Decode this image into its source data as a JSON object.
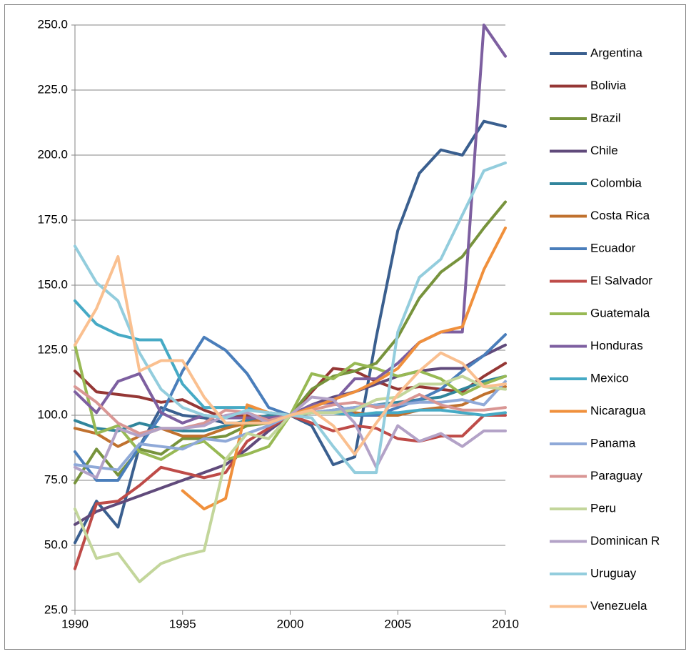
{
  "chart_data": {
    "type": "line",
    "x": [
      1990,
      1991,
      1992,
      1993,
      1994,
      1995,
      1996,
      1997,
      1998,
      1999,
      2000,
      2001,
      2002,
      2003,
      2004,
      2005,
      2006,
      2007,
      2008,
      2009,
      2010
    ],
    "xlim": [
      1990,
      2010
    ],
    "xticks": [
      1990,
      1995,
      2000,
      2005,
      2010
    ],
    "ylim": [
      25,
      250
    ],
    "yticks": [
      {
        "value": 25,
        "label": "25.0"
      },
      {
        "value": 50,
        "label": "50.0"
      },
      {
        "value": 75,
        "label": "75.0"
      },
      {
        "value": 100,
        "label": "100.0"
      },
      {
        "value": 125,
        "label": "125.0"
      },
      {
        "value": 150,
        "label": "150.0"
      },
      {
        "value": 175,
        "label": "175.0"
      },
      {
        "value": 200,
        "label": "200.0"
      },
      {
        "value": 225,
        "label": "225.0"
      },
      {
        "value": 250,
        "label": "250.0"
      }
    ],
    "grid": true,
    "legend": "right",
    "series": [
      {
        "name": "Argentina",
        "color": "#3a5f8f",
        "values": [
          51,
          67,
          57,
          88,
          103,
          100,
          99,
          97,
          97,
          98,
          100,
          96,
          81,
          84,
          130,
          171,
          193,
          202,
          200,
          213,
          211
        ]
      },
      {
        "name": "Bolivia",
        "color": "#953735",
        "values": [
          117,
          109,
          108,
          107,
          105,
          106,
          102,
          99,
          100,
          99,
          100,
          109,
          118,
          117,
          113,
          110,
          111,
          110,
          109,
          115,
          120
        ]
      },
      {
        "name": "Brazil",
        "color": "#77933c",
        "values": [
          74,
          87,
          77,
          87,
          85,
          91,
          91,
          92,
          96,
          97,
          100,
          110,
          115,
          117,
          120,
          130,
          145,
          155,
          161,
          172,
          182
        ]
      },
      {
        "name": "Chile",
        "color": "#604a7b",
        "values": [
          58,
          63,
          66,
          69,
          72,
          75,
          78,
          81,
          87,
          94,
          100,
          104,
          107,
          109,
          112,
          115,
          117,
          118,
          118,
          123,
          127
        ]
      },
      {
        "name": "Colombia",
        "color": "#31859c",
        "values": [
          98,
          95,
          94,
          97,
          95,
          94,
          94,
          96,
          98,
          100,
          100,
          101,
          102,
          103,
          104,
          105,
          106,
          107,
          110,
          113,
          115
        ]
      },
      {
        "name": "Costa Rica",
        "color": "#c0712e",
        "values": [
          95,
          93,
          88,
          92,
          95,
          92,
          92,
          95,
          97,
          99,
          100,
          101,
          101,
          101,
          100,
          100,
          102,
          103,
          104,
          108,
          111
        ]
      },
      {
        "name": "Ecuador",
        "color": "#4a7ebb",
        "values": [
          86,
          75,
          75,
          88,
          100,
          117,
          130,
          125,
          116,
          103,
          100,
          104,
          105,
          100,
          100,
          103,
          106,
          110,
          117,
          123,
          131
        ]
      },
      {
        "name": "El Salvador",
        "color": "#be4b48",
        "values": [
          41,
          66,
          67,
          73,
          80,
          78,
          76,
          78,
          90,
          95,
          100,
          97,
          94,
          96,
          95,
          91,
          90,
          92,
          92,
          100,
          100
        ]
      },
      {
        "name": "Guatemala",
        "color": "#98b954",
        "values": [
          127,
          93,
          96,
          86,
          83,
          88,
          90,
          83,
          85,
          88,
          100,
          116,
          114,
          120,
          118,
          115,
          117,
          114,
          108,
          112,
          115
        ]
      },
      {
        "name": "Honduras",
        "color": "#7d5fa0",
        "values": [
          109,
          101,
          113,
          116,
          101,
          97,
          100,
          99,
          99,
          99,
          100,
          104,
          105,
          114,
          114,
          120,
          128,
          132,
          132,
          250,
          238
        ]
      },
      {
        "name": "Mexico",
        "color": "#46aac5",
        "values": [
          144,
          135,
          131,
          129,
          129,
          112,
          103,
          103,
          103,
          101,
          100,
          101,
          101,
          100,
          101,
          101,
          102,
          102,
          101,
          100,
          101
        ]
      },
      {
        "name": "Nicaragua",
        "color": "#f0903c",
        "values": [
          null,
          null,
          null,
          null,
          null,
          71,
          64,
          68,
          104,
          101,
          100,
          103,
          106,
          109,
          113,
          118,
          128,
          132,
          134,
          156,
          172
        ]
      },
      {
        "name": "Panama",
        "color": "#8fa9d8",
        "values": [
          81,
          80,
          79,
          89,
          88,
          87,
          91,
          90,
          93,
          96,
          100,
          101,
          102,
          103,
          104,
          104,
          105,
          105,
          106,
          104,
          113
        ]
      },
      {
        "name": "Paraguay",
        "color": "#d99694",
        "values": [
          111,
          105,
          97,
          93,
          95,
          95,
          97,
          102,
          101,
          98,
          100,
          102,
          104,
          105,
          103,
          104,
          108,
          104,
          102,
          102,
          103
        ]
      },
      {
        "name": "Peru",
        "color": "#c3d69b",
        "values": [
          64,
          45,
          47,
          36,
          43,
          46,
          48,
          83,
          93,
          91,
          100,
          101,
          101,
          102,
          106,
          107,
          112,
          112,
          115,
          111,
          110
        ]
      },
      {
        "name": "Dominican R",
        "color": "#b3a2c7",
        "values": [
          80,
          76,
          95,
          92,
          95,
          95,
          96,
          100,
          101,
          97,
          100,
          107,
          106,
          97,
          80,
          96,
          90,
          93,
          88,
          94,
          94
        ]
      },
      {
        "name": "Uruguay",
        "color": "#93cddd",
        "values": [
          165,
          151,
          144,
          124,
          110,
          103,
          100,
          99,
          102,
          101,
          100,
          99,
          88,
          78,
          78,
          132,
          153,
          160,
          177,
          194,
          197
        ]
      },
      {
        "name": "Venezuela",
        "color": "#fac090",
        "values": [
          127,
          141,
          161,
          117,
          121,
          121,
          107,
          97,
          97,
          97,
          100,
          102,
          96,
          85,
          97,
          108,
          117,
          124,
          120,
          111,
          112
        ]
      }
    ]
  }
}
